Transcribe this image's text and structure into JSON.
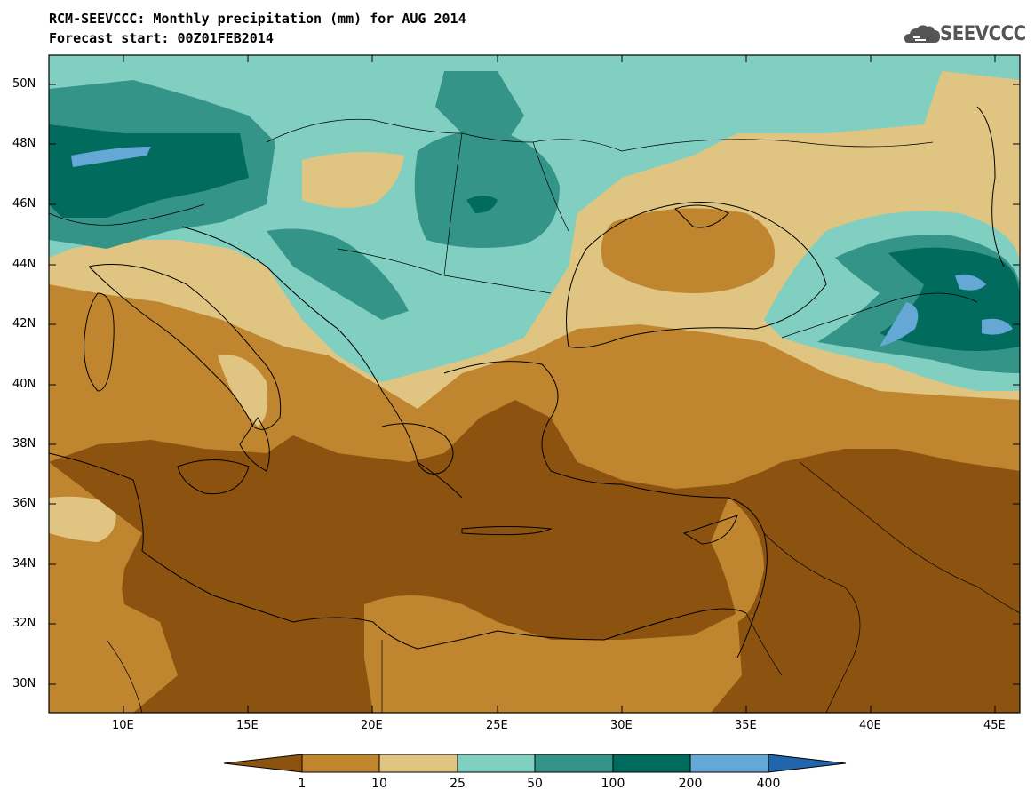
{
  "title_line1": "RCM-SEEVCCC: Monthly precipitation (mm) for AUG 2014",
  "title_line2": "Forecast start: 00Z01FEB2014",
  "logo": {
    "text": "SEEVCCC",
    "icon": "cloud-icon"
  },
  "map": {
    "lat_ticks": [
      "50N",
      "48N",
      "46N",
      "44N",
      "42N",
      "40N",
      "38N",
      "36N",
      "34N",
      "32N",
      "30N"
    ],
    "lon_ticks": [
      "10E",
      "15E",
      "20E",
      "25E",
      "30E",
      "35E",
      "40E",
      "45E"
    ],
    "lat_range": [
      29,
      51
    ],
    "lon_range": [
      7,
      46
    ]
  },
  "colorbar": {
    "labels": [
      "1",
      "10",
      "25",
      "50",
      "100",
      "200",
      "400"
    ],
    "colors": [
      "#8c5210",
      "#c0862f",
      "#e0c482",
      "#80cfc1",
      "#359488",
      "#016b5e",
      "#65a8d6",
      "#2166ac"
    ],
    "units": "mm"
  }
}
